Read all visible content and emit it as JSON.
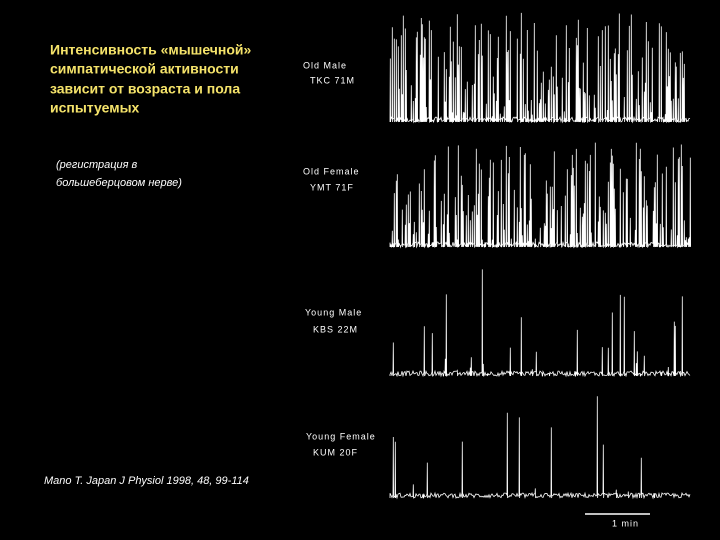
{
  "slide": {
    "title": [
      "Интенсивность «мышечной»",
      "симпатической активности",
      "зависит от возраста и пола",
      "испытуемых"
    ],
    "note": [
      "(регистрация в",
      "большеберцовом нерве)"
    ],
    "citation": "Mano T. Japan J Physiol 1998, 48, 99-114",
    "traces": [
      {
        "label": "Old Male",
        "code": "TKC 71M"
      },
      {
        "label": "Old Female",
        "code": "YMT 71F"
      },
      {
        "label": "Young Male",
        "code": "KBS 22M"
      },
      {
        "label": "Young Female",
        "code": "KUM 20F"
      }
    ],
    "scale_bar": "1 min"
  }
}
